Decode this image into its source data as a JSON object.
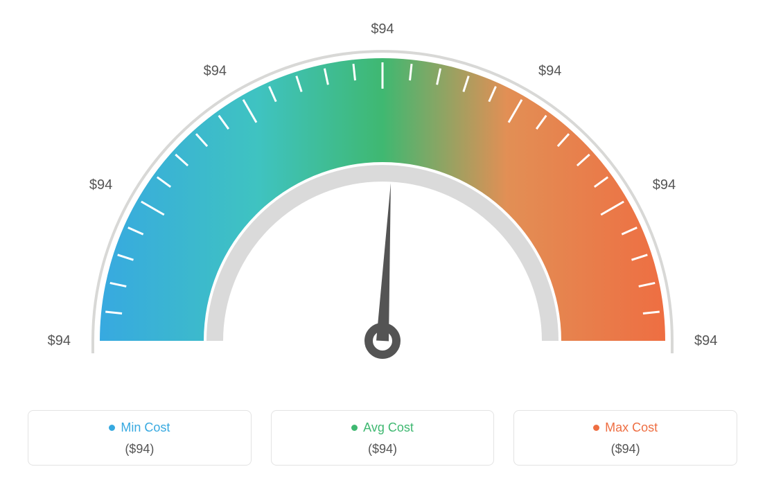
{
  "gauge": {
    "type": "gauge",
    "background_color": "#ffffff",
    "outer_ring": {
      "stroke": "#d8d8d6",
      "stroke_width": 4,
      "radius_outer": 418
    },
    "arc": {
      "radius_outer": 408,
      "radius_inner": 258,
      "colors": {
        "left": "#37a9e0",
        "left_mid": "#3fc3c1",
        "mid": "#3fb871",
        "right_mid": "#e28f55",
        "right": "#ee6e42"
      }
    },
    "inner_ring": {
      "stroke": "#dadada",
      "stroke_width": 24,
      "radius": 242
    },
    "ticks": {
      "color": "#ffffff",
      "width": 3,
      "major_len": 38,
      "minor_len": 24,
      "count_segments": 6,
      "minor_per_segment": 4
    },
    "tick_labels": [
      "$94",
      "$94",
      "$94",
      "$94",
      "$94",
      "$94",
      "$94"
    ],
    "tick_label_fontsize": 20,
    "tick_label_color": "#555555",
    "needle": {
      "angle_deg_from_vertical": 3,
      "color": "#545454",
      "length": 228,
      "base_half_width": 9,
      "hub_outer_radius": 26,
      "hub_inner_radius": 14,
      "hub_stroke_width": 12
    }
  },
  "legend": {
    "cards": [
      {
        "label": "Min Cost",
        "value": "($94)",
        "color": "#37a9e0"
      },
      {
        "label": "Avg Cost",
        "value": "($94)",
        "color": "#3fb871"
      },
      {
        "label": "Max Cost",
        "value": "($94)",
        "color": "#ee6e42"
      }
    ],
    "border_color": "#e3e3e3",
    "label_fontsize": 18,
    "value_fontsize": 18,
    "value_color": "#555555"
  }
}
